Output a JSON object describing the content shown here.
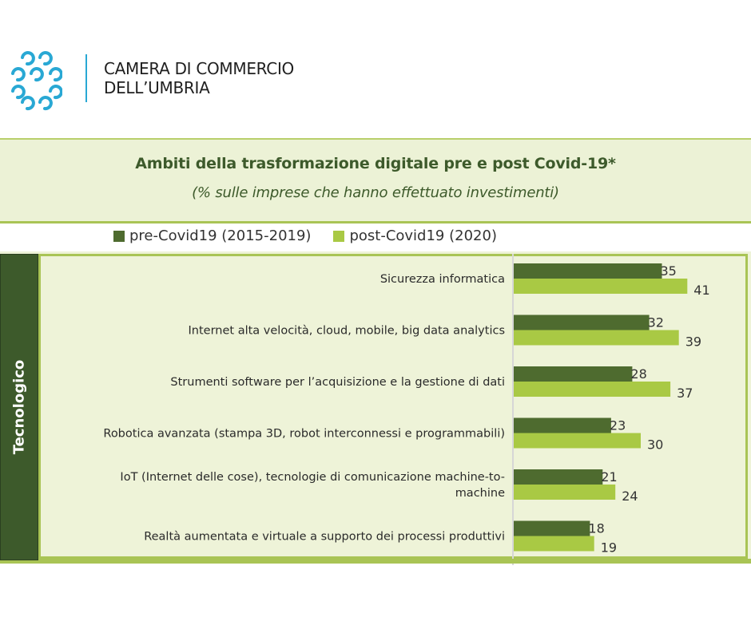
{
  "header": {
    "org_line1": "CAMERA DI COMMERCIO",
    "org_line2": "DELL’UMBRIA",
    "logo_icon": "chamber-of-commerce-logo-icon"
  },
  "colors": {
    "pre": "#4e6b2f",
    "post": "#a9c944",
    "sidebar": "#3d5a2b",
    "panel_bg": "#eef3d8",
    "logo": "#29a8d4"
  },
  "chart_data": {
    "type": "bar",
    "orientation": "horizontal",
    "title": "Ambiti della trasformazione digitale pre e post Covid-19*",
    "subtitle": "(% sulle imprese che hanno effettuato investimenti)",
    "group_label": "Tecnologico",
    "categories": [
      [
        "Sicurezza informatica"
      ],
      [
        "Internet alta velocità, cloud, mobile, big data analytics"
      ],
      [
        "Strumenti software  per l’acquisizione e la gestione di dati"
      ],
      [
        "Robotica avanzata (stampa 3D, robot interconnessi e programmabili)"
      ],
      [
        "IoT (Internet delle cose), tecnologie di comunicazione machine-to-",
        "machine"
      ],
      [
        "Realtà aumentata e virtuale a supporto dei processi produttivi"
      ]
    ],
    "series": [
      {
        "name": "pre-Covid19 (2015-2019)",
        "values": [
          35,
          32,
          28,
          23,
          21,
          18
        ]
      },
      {
        "name": "post-Covid19 (2020)",
        "values": [
          41,
          39,
          37,
          30,
          24,
          19
        ]
      }
    ],
    "legend_position": "top",
    "grid": false
  }
}
